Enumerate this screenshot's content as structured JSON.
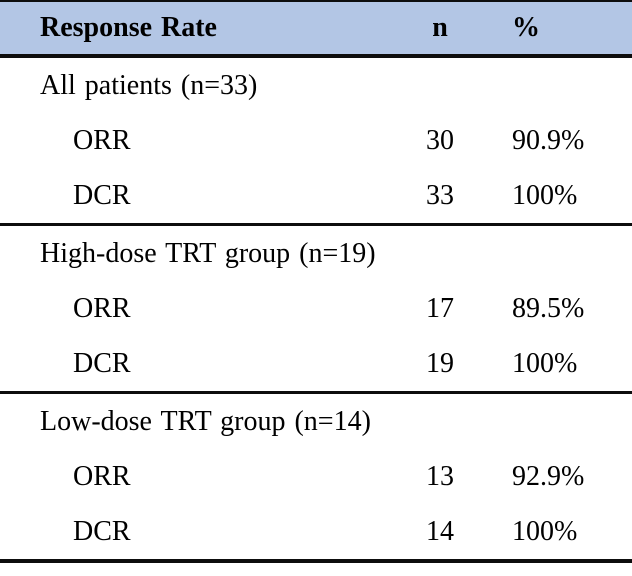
{
  "table": {
    "header": {
      "col1": "Response Rate",
      "col2": "n",
      "col3": "%"
    },
    "sections": [
      {
        "title": "All patients (n=33)",
        "rows": [
          {
            "label": "ORR",
            "n": "30",
            "pct": "90.9%"
          },
          {
            "label": "DCR",
            "n": "33",
            "pct": "100%"
          }
        ]
      },
      {
        "title": "High-dose TRT group (n=19)",
        "rows": [
          {
            "label": "ORR",
            "n": "17",
            "pct": "89.5%"
          },
          {
            "label": "DCR",
            "n": "19",
            "pct": "100%"
          }
        ]
      },
      {
        "title": "Low-dose TRT group (n=14)",
        "rows": [
          {
            "label": "ORR",
            "n": "13",
            "pct": "92.9%"
          },
          {
            "label": "DCR",
            "n": "14",
            "pct": "100%"
          }
        ]
      }
    ],
    "colors": {
      "header_bg": "#b3c6e5",
      "rule_color": "#0d0d0d",
      "text_color": "#000000",
      "body_bg": "#ffffff"
    }
  },
  "chart_data": {
    "type": "table",
    "title": "Response Rate",
    "columns": [
      "Response Rate",
      "n",
      "%"
    ],
    "rows": [
      [
        "All patients (n=33)",
        "",
        ""
      ],
      [
        "ORR",
        30,
        "90.9%"
      ],
      [
        "DCR",
        33,
        "100%"
      ],
      [
        "High-dose TRT group (n=19)",
        "",
        ""
      ],
      [
        "ORR",
        17,
        "89.5%"
      ],
      [
        "DCR",
        19,
        "100%"
      ],
      [
        "Low-dose TRT group (n=14)",
        "",
        ""
      ],
      [
        "ORR",
        13,
        "92.9%"
      ],
      [
        "DCR",
        14,
        "100%"
      ]
    ]
  }
}
